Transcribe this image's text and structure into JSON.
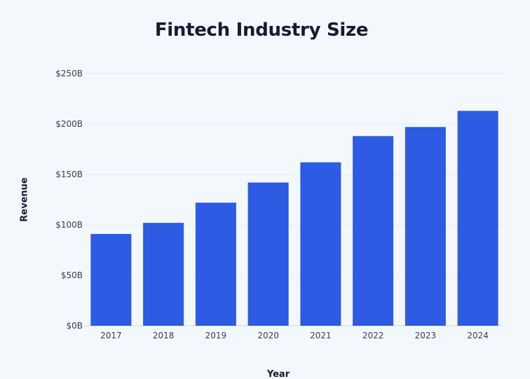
{
  "chart_data": {
    "type": "bar",
    "title": "Fintech Industry Size",
    "xlabel": "Year",
    "ylabel": "Revenue",
    "categories": [
      "2017",
      "2018",
      "2019",
      "2020",
      "2021",
      "2022",
      "2023",
      "2024"
    ],
    "values": [
      91,
      102,
      122,
      142,
      162,
      188,
      197,
      213
    ],
    "ylim": [
      0,
      250
    ],
    "yticks": [
      0,
      50,
      100,
      150,
      200,
      250
    ],
    "ytick_labels": [
      "$0B",
      "$50B",
      "$100B",
      "$150B",
      "$200B",
      "$250B"
    ],
    "grid": true,
    "bar_color": "#2d5be3"
  }
}
